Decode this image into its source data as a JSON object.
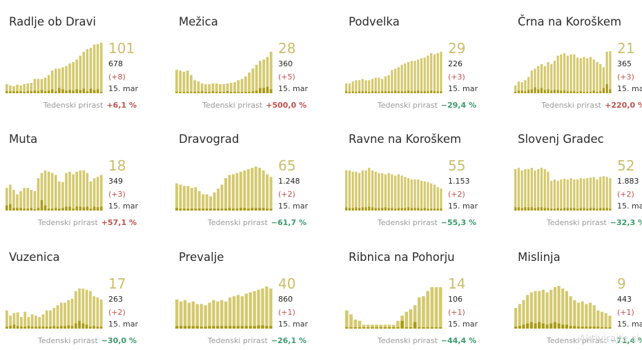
{
  "colors": {
    "bar": "#d4c96e",
    "bar_dark": "#a99a14",
    "number": "#cbbd6a",
    "up": "#c0504d",
    "down": "#3a9a6a"
  },
  "common": {
    "date_label": "15. mar",
    "weekly_label": "Tedenski prirast"
  },
  "watermark": "Aktivirajte si",
  "chart_data": [
    {
      "type": "bar",
      "title": "Radlje ob Dravi",
      "current": "101",
      "total": "678",
      "delta": "(+8)",
      "weekly": "+6,1 %",
      "trend": "up",
      "values": [
        14,
        12,
        11,
        13,
        12,
        14,
        15,
        16,
        22,
        22,
        22,
        24,
        28,
        35,
        38,
        38,
        40,
        42,
        46,
        48,
        52,
        58,
        64,
        68,
        70,
        75,
        76,
        78
      ],
      "highlights": [
        3,
        3,
        3,
        3,
        3,
        2,
        3,
        3,
        4,
        3,
        5,
        3,
        4,
        6,
        3,
        8,
        6,
        4,
        5,
        4,
        6,
        5,
        7,
        3,
        7,
        5,
        6,
        2
      ]
    },
    {
      "type": "bar",
      "title": "Mežica",
      "current": "28",
      "total": "360",
      "delta": "(+5)",
      "weekly": "+500,0 %",
      "trend": "up",
      "values": [
        36,
        35,
        33,
        35,
        28,
        20,
        18,
        15,
        14,
        14,
        15,
        15,
        14,
        14,
        15,
        16,
        17,
        20,
        22,
        26,
        32,
        38,
        44,
        50,
        52,
        56,
        64
      ],
      "highlights": [
        2,
        2,
        2,
        2,
        2,
        2,
        2,
        3,
        2,
        2,
        3,
        2,
        2,
        2,
        3,
        2,
        2,
        2,
        2,
        2,
        2,
        3,
        4,
        8,
        8,
        10,
        6
      ]
    },
    {
      "type": "bar",
      "title": "Podvelka",
      "current": "29",
      "total": "226",
      "delta": "(+3)",
      "weekly": "−29,4 %",
      "trend": "down",
      "values": [
        15,
        15,
        18,
        20,
        20,
        22,
        20,
        20,
        22,
        24,
        24,
        22,
        26,
        28,
        36,
        38,
        40,
        44,
        46,
        48,
        50,
        50,
        52,
        54,
        55,
        58,
        62,
        60,
        62,
        64
      ],
      "highlights": [
        3,
        2,
        3,
        2,
        3,
        3,
        3,
        2,
        3,
        3,
        2,
        3,
        3,
        3,
        3,
        4,
        3,
        3,
        3,
        4,
        3,
        3,
        4,
        3,
        3,
        3,
        4,
        3,
        3,
        3
      ]
    },
    {
      "type": "bar",
      "title": "Črna na Koroškem",
      "current": "21",
      "total": "365",
      "delta": "(+3)",
      "weekly": "+220,0 %",
      "trend": "up",
      "values": [
        12,
        18,
        17,
        20,
        25,
        35,
        38,
        42,
        45,
        42,
        48,
        45,
        50,
        58,
        60,
        62,
        58,
        60,
        60,
        55,
        54,
        56,
        54,
        56,
        52,
        48,
        45,
        40,
        64,
        65
      ],
      "highlights": [
        2,
        4,
        4,
        3,
        5,
        6,
        9,
        6,
        8,
        5,
        6,
        4,
        5,
        5,
        4,
        4,
        3,
        3,
        3,
        2,
        3,
        2,
        2,
        2,
        4,
        2,
        3,
        8,
        14,
        6
      ]
    },
    {
      "type": "bar",
      "title": "Muta",
      "current": "18",
      "total": "349",
      "delta": "(+3)",
      "weekly": "+57,1 %",
      "trend": "up",
      "values": [
        35,
        40,
        32,
        25,
        30,
        35,
        35,
        32,
        30,
        50,
        58,
        62,
        60,
        58,
        55,
        45,
        44,
        58,
        60,
        56,
        60,
        62,
        62,
        58,
        45,
        50,
        52,
        55
      ],
      "highlights": [
        8,
        10,
        4,
        4,
        4,
        3,
        3,
        4,
        2,
        4,
        16,
        8,
        3,
        3,
        4,
        3,
        4,
        6,
        6,
        3,
        6,
        6,
        5,
        6,
        3,
        6,
        5,
        6
      ]
    },
    {
      "type": "bar",
      "title": "Dravograd",
      "current": "65",
      "total": "1.248",
      "delta": "(+2)",
      "weekly": "−61,7 %",
      "trend": "down",
      "values": [
        42,
        40,
        38,
        38,
        35,
        36,
        30,
        25,
        25,
        22,
        28,
        34,
        40,
        50,
        55,
        56,
        58,
        60,
        62,
        64,
        66,
        68,
        66,
        62,
        56,
        52
      ],
      "highlights": [
        4,
        3,
        3,
        3,
        3,
        3,
        3,
        3,
        3,
        3,
        3,
        3,
        3,
        3,
        4,
        3,
        3,
        4,
        4,
        3,
        4,
        4,
        4,
        4,
        3,
        3
      ]
    },
    {
      "type": "bar",
      "title": "Ravne na Koroškem",
      "current": "55",
      "total": "1.153",
      "delta": "(+2)",
      "weekly": "−55,3 %",
      "trend": "down",
      "values": [
        62,
        62,
        60,
        60,
        58,
        62,
        62,
        66,
        62,
        60,
        58,
        58,
        56,
        58,
        56,
        54,
        56,
        54,
        52,
        50,
        48,
        48,
        48,
        46,
        45,
        44,
        42,
        40,
        36,
        34
      ],
      "highlights": [
        5,
        4,
        4,
        5,
        4,
        5,
        5,
        6,
        5,
        4,
        4,
        4,
        5,
        4,
        4,
        3,
        4,
        4,
        4,
        5,
        4,
        4,
        4,
        3,
        4,
        3,
        3,
        3,
        3,
        3
      ]
    },
    {
      "type": "bar",
      "title": "Slovenj Gradec",
      "current": "52",
      "total": "1.883",
      "delta": "(+2)",
      "weekly": "−32,3 %",
      "trend": "down",
      "values": [
        64,
        66,
        62,
        64,
        64,
        66,
        62,
        64,
        66,
        64,
        60,
        46,
        48,
        46,
        48,
        49,
        48,
        50,
        48,
        48,
        50,
        49,
        50,
        51,
        52,
        48,
        52,
        53,
        52,
        50
      ],
      "highlights": [
        5,
        5,
        4,
        5,
        5,
        5,
        4,
        5,
        5,
        4,
        4,
        3,
        3,
        4,
        3,
        4,
        4,
        4,
        4,
        3,
        4,
        4,
        3,
        4,
        4,
        3,
        4,
        4,
        4,
        3
      ]
    },
    {
      "type": "bar",
      "title": "Vuzenica",
      "current": "17",
      "total": "263",
      "delta": "(+2)",
      "weekly": "−30,0 %",
      "trend": "down",
      "values": [
        28,
        20,
        24,
        25,
        18,
        26,
        18,
        22,
        20,
        18,
        22,
        28,
        28,
        32,
        36,
        40,
        40,
        44,
        46,
        58,
        62,
        62,
        60,
        58,
        50,
        48,
        45
      ],
      "highlights": [
        3,
        4,
        6,
        4,
        3,
        3,
        4,
        3,
        3,
        3,
        3,
        3,
        3,
        4,
        3,
        4,
        4,
        5,
        4,
        8,
        12,
        8,
        6,
        3,
        4,
        3,
        3
      ]
    },
    {
      "type": "bar",
      "title": "Prevalje",
      "current": "40",
      "total": "860",
      "delta": "(+1)",
      "weekly": "−26,1 %",
      "trend": "down",
      "values": [
        45,
        42,
        44,
        40,
        42,
        38,
        38,
        36,
        40,
        44,
        42,
        44,
        42,
        48,
        50,
        52,
        50,
        54,
        56,
        58,
        60,
        62,
        65,
        62
      ],
      "highlights": [
        4,
        4,
        4,
        4,
        4,
        4,
        3,
        3,
        4,
        4,
        4,
        4,
        4,
        4,
        4,
        4,
        4,
        4,
        4,
        4,
        5,
        5,
        4,
        4
      ]
    },
    {
      "type": "bar",
      "title": "Ribnica na Pohorju",
      "current": "14",
      "total": "106",
      "delta": "(+1)",
      "weekly": "−44,4 %",
      "trend": "down",
      "values": [
        28,
        22,
        14,
        12,
        6,
        6,
        6,
        6,
        6,
        6,
        6,
        6,
        12,
        20,
        26,
        30,
        36,
        48,
        50,
        58,
        64,
        64,
        64
      ],
      "highlights": [
        2,
        2,
        2,
        2,
        2,
        2,
        2,
        2,
        2,
        2,
        2,
        2,
        2,
        12,
        2,
        2,
        10,
        2,
        2,
        2,
        2,
        2,
        2
      ]
    },
    {
      "type": "bar",
      "title": "Mislinja",
      "current": "9",
      "total": "443",
      "delta": "(+1)",
      "weekly": "−71,4 %",
      "trend": "down",
      "values": [
        32,
        38,
        44,
        52,
        56,
        58,
        58,
        60,
        56,
        60,
        64,
        66,
        62,
        58,
        50,
        44,
        40,
        42,
        38,
        40,
        36,
        28,
        26,
        24,
        20
      ],
      "highlights": [
        3,
        4,
        6,
        8,
        10,
        8,
        10,
        8,
        6,
        8,
        10,
        8,
        6,
        6,
        4,
        4,
        3,
        3,
        3,
        3,
        3,
        3,
        2,
        2,
        2
      ]
    }
  ]
}
